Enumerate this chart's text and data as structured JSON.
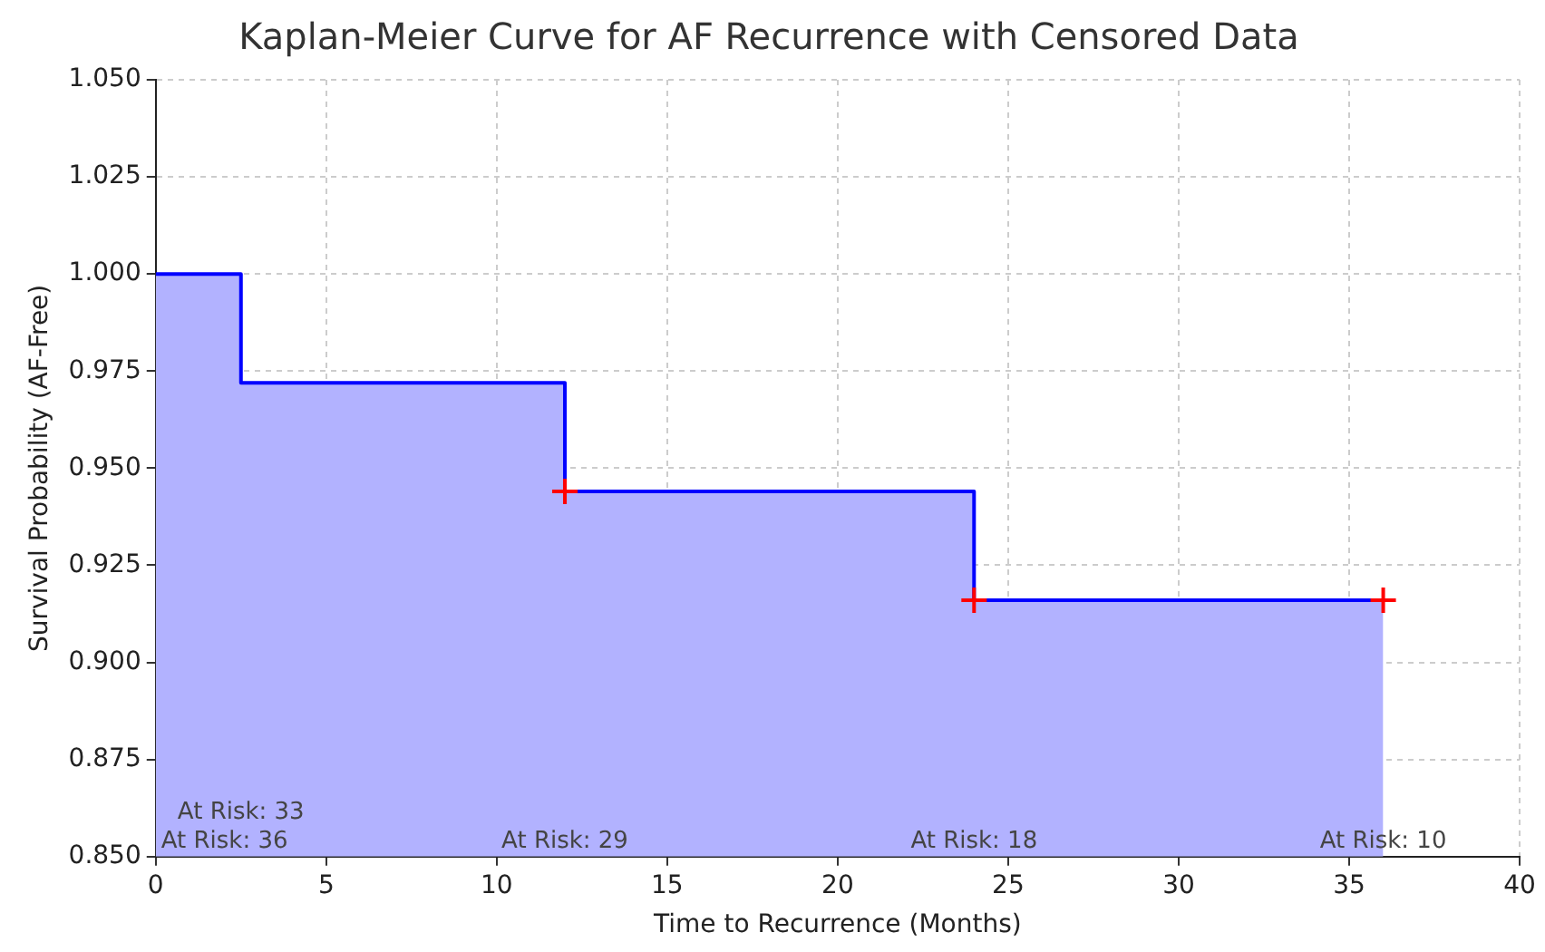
{
  "chart_data": {
    "type": "step",
    "title": "Kaplan-Meier Curve for AF Recurrence with Censored Data",
    "xlabel": "Time to Recurrence (Months)",
    "ylabel": "Survival Probability (AF-Free)",
    "series": [
      {
        "type": "step",
        "color": "#0000ff",
        "x": [
          0,
          2.5,
          12,
          24,
          36
        ],
        "values": [
          1.0,
          0.972,
          0.944,
          0.916,
          0.916
        ]
      },
      {
        "type": "area",
        "color": "#b2b2ff",
        "x": [
          0,
          2.5,
          12,
          24,
          36
        ],
        "values": [
          1.0,
          0.972,
          0.944,
          0.916,
          0.916
        ]
      },
      {
        "type": "scatter",
        "color": "#ff0000",
        "marker": "cross",
        "x": [
          12,
          24,
          36
        ],
        "values": [
          0.944,
          0.916,
          0.916
        ]
      }
    ],
    "xlim": [
      0,
      40
    ],
    "xticks": [
      0,
      5,
      10,
      15,
      20,
      25,
      30,
      35,
      40
    ],
    "ylim": [
      0.85,
      1.05
    ],
    "yticks": [
      {
        "value": 0.85,
        "label": "0.850"
      },
      {
        "value": 0.875,
        "label": "0.875"
      },
      {
        "value": 0.9,
        "label": "0.900"
      },
      {
        "value": 0.925,
        "label": "0.925"
      },
      {
        "value": 0.95,
        "label": "0.950"
      },
      {
        "value": 0.975,
        "label": "0.975"
      },
      {
        "value": 1.0,
        "label": "1.000"
      },
      {
        "value": 1.025,
        "label": "1.025"
      },
      {
        "value": 1.05,
        "label": "1.050"
      }
    ],
    "grid": true,
    "legend": false,
    "annotations": [
      "At Risk: 36",
      "At Risk: 33",
      "At Risk: 29",
      "At Risk: 18",
      "At Risk: 10"
    ]
  }
}
